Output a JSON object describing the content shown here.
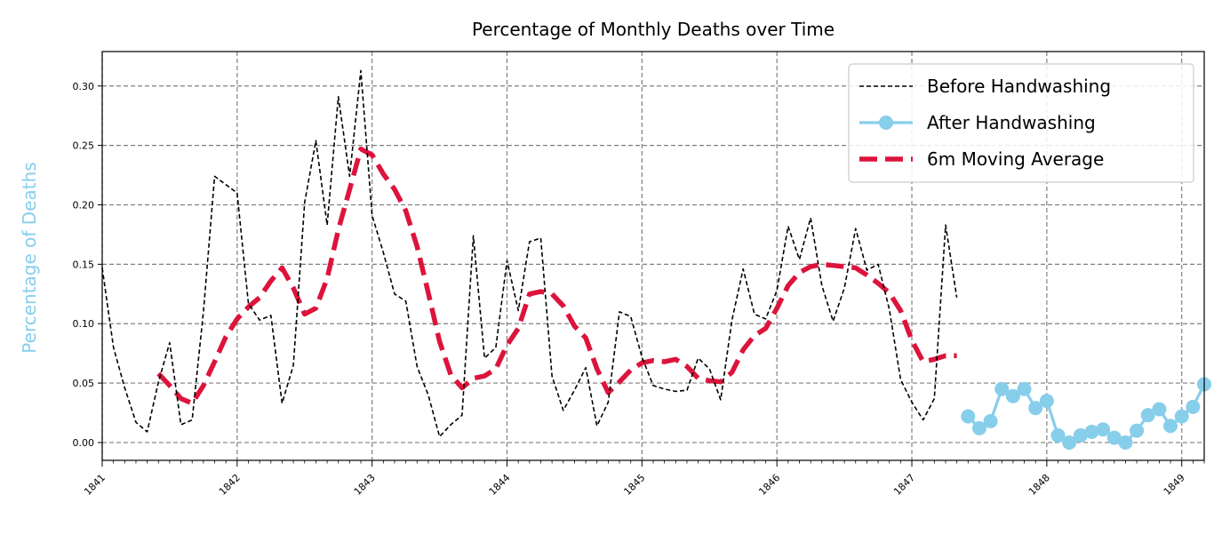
{
  "chart_data": {
    "type": "line",
    "title": "Percentage of Monthly Deaths over Time",
    "xlabel": "",
    "ylabel": "Percentage of Deaths",
    "ylabel_color": "#87ceeb",
    "xlim": [
      "1841-01-01",
      "1849-03-01"
    ],
    "ylim": [
      -0.015,
      0.329
    ],
    "y_ticks": [
      "0.00",
      "0.05",
      "0.10",
      "0.15",
      "0.20",
      "0.25",
      "0.30"
    ],
    "x_ticks": [
      "1841",
      "1842",
      "1843",
      "1844",
      "1845",
      "1846",
      "1847",
      "1848",
      "1849"
    ],
    "grid": true,
    "legend_position": "top-right",
    "series": [
      {
        "name": "Before Handwashing",
        "color": "#000000",
        "style": "dashed",
        "x": [
          "1841-01-01",
          "1841-02-01",
          "1841-03-01",
          "1841-04-01",
          "1841-05-01",
          "1841-06-01",
          "1841-07-01",
          "1841-08-01",
          "1841-09-01",
          "1841-10-01",
          "1841-11-01",
          "1841-12-01",
          "1842-01-01",
          "1842-02-01",
          "1842-03-01",
          "1842-04-01",
          "1842-05-01",
          "1842-06-01",
          "1842-07-01",
          "1842-08-01",
          "1842-09-01",
          "1842-10-01",
          "1842-11-01",
          "1842-12-01",
          "1843-01-01",
          "1843-02-01",
          "1843-03-01",
          "1843-04-01",
          "1843-05-01",
          "1843-06-01",
          "1843-07-01",
          "1843-08-01",
          "1843-09-01",
          "1843-10-01",
          "1843-11-01",
          "1843-12-01",
          "1844-01-01",
          "1844-02-01",
          "1844-03-01",
          "1844-04-01",
          "1844-05-01",
          "1844-06-01",
          "1844-07-01",
          "1844-08-01",
          "1844-09-01",
          "1844-10-01",
          "1844-11-01",
          "1844-12-01",
          "1845-01-01",
          "1845-02-01",
          "1845-03-01",
          "1845-04-01",
          "1845-05-01",
          "1845-06-01",
          "1845-07-01",
          "1845-08-01",
          "1845-09-01",
          "1845-10-01",
          "1845-11-01",
          "1845-12-01",
          "1846-01-01",
          "1846-02-01",
          "1846-03-01",
          "1846-04-01",
          "1846-05-01",
          "1846-06-01",
          "1846-07-01",
          "1846-08-01",
          "1846-09-01",
          "1846-10-01",
          "1846-11-01",
          "1846-12-01",
          "1847-01-01",
          "1847-02-01",
          "1847-03-01",
          "1847-04-01",
          "1847-05-01"
        ],
        "values": [
          0.147,
          0.08,
          0.046,
          0.017,
          0.009,
          0.051,
          0.084,
          0.015,
          0.019,
          0.11,
          0.224,
          0.217,
          0.21,
          0.117,
          0.103,
          0.107,
          0.033,
          0.065,
          0.202,
          0.254,
          0.183,
          0.291,
          0.224,
          0.313,
          0.191,
          0.16,
          0.125,
          0.119,
          0.064,
          0.04,
          0.005,
          0.015,
          0.023,
          0.174,
          0.071,
          0.08,
          0.153,
          0.111,
          0.169,
          0.172,
          0.056,
          0.027,
          0.044,
          0.063,
          0.014,
          0.034,
          0.11,
          0.106,
          0.072,
          0.048,
          0.045,
          0.043,
          0.044,
          0.071,
          0.062,
          0.036,
          0.103,
          0.146,
          0.108,
          0.104,
          0.128,
          0.182,
          0.154,
          0.189,
          0.132,
          0.102,
          0.13,
          0.18,
          0.145,
          0.15,
          0.112,
          0.053,
          0.034,
          0.019,
          0.037,
          0.183,
          0.122
        ]
      },
      {
        "name": "After Handwashing",
        "color": "#87ceeb",
        "style": "solid-markers",
        "x": [
          "1847-06-01",
          "1847-07-01",
          "1847-08-01",
          "1847-09-01",
          "1847-10-01",
          "1847-11-01",
          "1847-12-01",
          "1848-01-01",
          "1848-02-01",
          "1848-03-01",
          "1848-04-01",
          "1848-05-01",
          "1848-06-01",
          "1848-07-01",
          "1848-08-01",
          "1848-09-01",
          "1848-10-01",
          "1848-11-01",
          "1848-12-01",
          "1849-01-01",
          "1849-02-01",
          "1849-03-01"
        ],
        "values": [
          0.022,
          0.012,
          0.018,
          0.045,
          0.039,
          0.045,
          0.029,
          0.035,
          0.006,
          0.0,
          0.006,
          0.009,
          0.011,
          0.004,
          0.0,
          0.01,
          0.023,
          0.028,
          0.014,
          0.022,
          0.03,
          0.049
        ]
      },
      {
        "name": "6m Moving Average",
        "color": "#dc143c",
        "style": "thick-dashed",
        "x": [
          "1841-06-01",
          "1841-07-01",
          "1841-08-01",
          "1841-09-01",
          "1841-10-01",
          "1841-11-01",
          "1841-12-01",
          "1842-01-01",
          "1842-02-01",
          "1842-03-01",
          "1842-04-01",
          "1842-05-01",
          "1842-06-01",
          "1842-07-01",
          "1842-08-01",
          "1842-09-01",
          "1842-10-01",
          "1842-11-01",
          "1842-12-01",
          "1843-01-01",
          "1843-02-01",
          "1843-03-01",
          "1843-04-01",
          "1843-05-01",
          "1843-06-01",
          "1843-07-01",
          "1843-08-01",
          "1843-09-01",
          "1843-10-01",
          "1843-11-01",
          "1843-12-01",
          "1844-01-01",
          "1844-02-01",
          "1844-03-01",
          "1844-04-01",
          "1844-05-01",
          "1844-06-01",
          "1844-07-01",
          "1844-08-01",
          "1844-09-01",
          "1844-10-01",
          "1844-11-01",
          "1844-12-01",
          "1845-01-01",
          "1845-02-01",
          "1845-03-01",
          "1845-04-01",
          "1845-05-01",
          "1845-06-01",
          "1845-07-01",
          "1845-08-01",
          "1845-09-01",
          "1845-10-01",
          "1845-11-01",
          "1845-12-01",
          "1846-01-01",
          "1846-02-01",
          "1846-03-01",
          "1846-04-01",
          "1846-05-01",
          "1846-06-01",
          "1846-07-01",
          "1846-08-01",
          "1846-09-01",
          "1846-10-01",
          "1846-11-01",
          "1846-12-01",
          "1847-01-01",
          "1847-02-01",
          "1847-03-01",
          "1847-04-01",
          "1847-05-01"
        ],
        "values": [
          0.058,
          0.048,
          0.037,
          0.033,
          0.048,
          0.068,
          0.089,
          0.104,
          0.114,
          0.122,
          0.136,
          0.147,
          0.13,
          0.108,
          0.113,
          0.138,
          0.179,
          0.213,
          0.247,
          0.242,
          0.226,
          0.213,
          0.195,
          0.165,
          0.126,
          0.085,
          0.057,
          0.046,
          0.054,
          0.056,
          0.062,
          0.082,
          0.096,
          0.125,
          0.127,
          0.125,
          0.115,
          0.098,
          0.088,
          0.062,
          0.042,
          0.051,
          0.061,
          0.067,
          0.069,
          0.068,
          0.07,
          0.064,
          0.054,
          0.052,
          0.051,
          0.059,
          0.078,
          0.09,
          0.096,
          0.113,
          0.132,
          0.143,
          0.148,
          0.15,
          0.149,
          0.148,
          0.147,
          0.141,
          0.134,
          0.126,
          0.111,
          0.086,
          0.068,
          0.07,
          0.073,
          0.073
        ]
      }
    ]
  }
}
